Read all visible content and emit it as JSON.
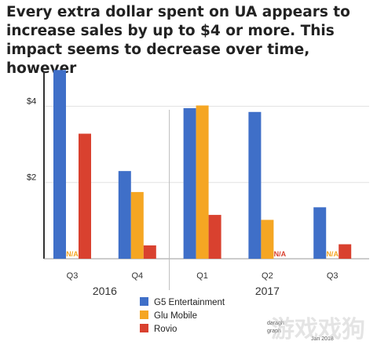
{
  "chart_data": {
    "type": "bar",
    "title": "Every extra dollar spent on UA appears to increase sales by up to $4 or more. This impact seems to decrease over time, however",
    "categories": [
      "Q3",
      "Q4",
      "Q1",
      "Q2",
      "Q3"
    ],
    "years": [
      {
        "label": "2016",
        "from": 0,
        "to": 1
      },
      {
        "label": "2017",
        "from": 2,
        "to": 4
      }
    ],
    "series": [
      {
        "name": "G5 Entertainment",
        "color": "#3f6fc8",
        "values": [
          4.95,
          2.3,
          3.95,
          3.85,
          1.35
        ]
      },
      {
        "name": "Glu Mobile",
        "color": "#f5a623",
        "values": [
          null,
          1.75,
          4.02,
          1.02,
          null
        ]
      },
      {
        "name": "Rovio",
        "color": "#d9412f",
        "values": [
          3.28,
          0.35,
          1.15,
          null,
          0.38
        ]
      }
    ],
    "na_label": "N/A",
    "y_ticks": [
      {
        "value": 2,
        "label": "$2"
      },
      {
        "value": 4,
        "label": "$4"
      }
    ],
    "ylim": [
      0,
      5.1
    ],
    "grid": true,
    "legend_position": "bottom-center"
  },
  "footer": {
    "source_lines": [
      "daragh",
      "graph",
      "Jan 2018"
    ],
    "watermark": "游戏戏狗"
  }
}
